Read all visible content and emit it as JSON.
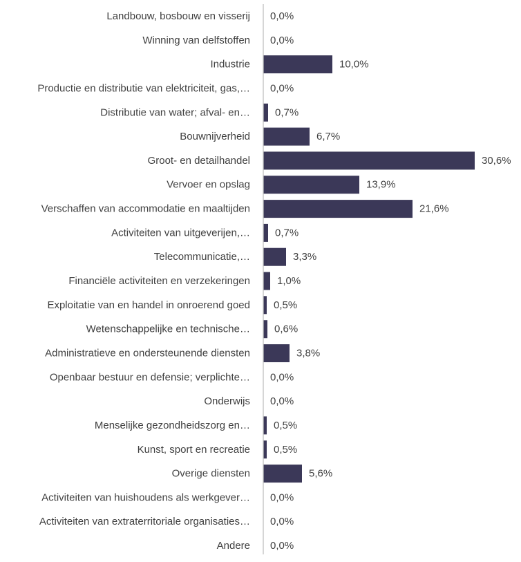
{
  "chart_data": {
    "type": "bar",
    "orientation": "horizontal",
    "bar_color": "#3b3858",
    "axis_color": "#bfbfbf",
    "text_color": "#404040",
    "grid": false,
    "legend": "none",
    "xlim": [
      0,
      30.6
    ],
    "categories": [
      "Landbouw, bosbouw en visserij",
      "Winning van delfstoffen",
      "Industrie",
      "Productie en distributie van elektriciteit, gas,…",
      "Distributie van water; afval- en…",
      "Bouwnijverheid",
      "Groot- en detailhandel",
      "Vervoer en opslag",
      "Verschaffen van accommodatie en maaltijden",
      "Activiteiten van uitgeverijen,…",
      "Telecommunicatie,…",
      "Financiële activiteiten en verzekeringen",
      "Exploitatie van en handel in onroerend goed",
      "Wetenschappelijke en technische…",
      "Administratieve en ondersteunende diensten",
      "Openbaar bestuur en defensie; verplichte…",
      "Onderwijs",
      "Menselijke gezondheidszorg en…",
      "Kunst, sport en recreatie",
      "Overige diensten",
      "Activiteiten van huishoudens als werkgever…",
      "Activiteiten van extraterritoriale organisaties…",
      "Andere"
    ],
    "values": [
      0.0,
      0.0,
      10.0,
      0.0,
      0.7,
      6.7,
      30.6,
      13.9,
      21.6,
      0.7,
      3.3,
      1.0,
      0.5,
      0.6,
      3.8,
      0.0,
      0.0,
      0.5,
      0.5,
      5.6,
      0.0,
      0.0,
      0.0
    ],
    "value_labels": [
      "0,0%",
      "0,0%",
      "10,0%",
      "0,0%",
      "0,7%",
      "6,7%",
      "30,6%",
      "13,9%",
      "21,6%",
      "0,7%",
      "3,3%",
      "1,0%",
      "0,5%",
      "0,6%",
      "3,8%",
      "0,0%",
      "0,0%",
      "0,5%",
      "0,5%",
      "5,6%",
      "0,0%",
      "0,0%",
      "0,0%"
    ]
  }
}
